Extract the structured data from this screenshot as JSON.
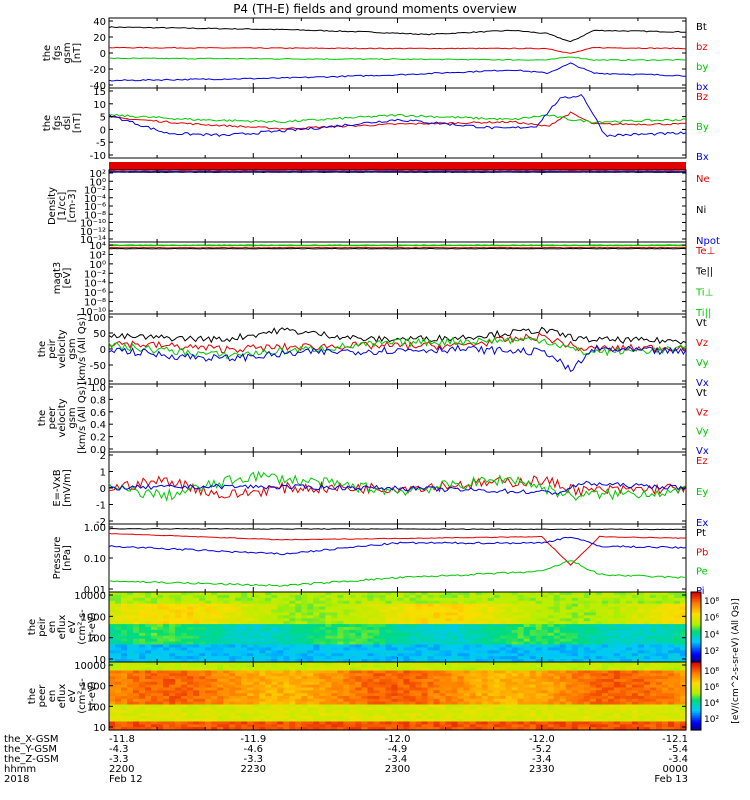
{
  "title": "P4 (TH-E) fields and ground moments overview",
  "colors": {
    "black": "#000000",
    "red": "#e00000",
    "green": "#00c800",
    "blue": "#0000e0"
  },
  "chart_data": [
    {
      "type": "line",
      "id": "fgs_gsm",
      "ylabel_lines": [
        "the",
        "fgs",
        "gsm",
        "[nT]"
      ],
      "yticks": [
        "40",
        "20",
        "0",
        "-20",
        "-40"
      ],
      "ylim": [
        -40,
        45
      ],
      "legend": [
        {
          "text": "Bt",
          "color": "black"
        },
        {
          "text": "bz",
          "color": "red"
        },
        {
          "text": "by",
          "color": "green"
        },
        {
          "text": "bx",
          "color": "blue"
        }
      ],
      "series": [
        {
          "name": "Bt",
          "color": "black",
          "noise": 0.6,
          "x": [
            0,
            0.3,
            0.45,
            0.55,
            0.7,
            0.76,
            0.8,
            0.84,
            1
          ],
          "y": [
            34,
            31,
            28,
            25,
            30,
            26,
            16,
            30,
            28
          ]
        },
        {
          "name": "bz",
          "color": "red",
          "noise": 0.5,
          "x": [
            0,
            0.5,
            0.76,
            0.8,
            0.84,
            1
          ],
          "y": [
            9,
            8,
            8,
            2,
            9,
            8
          ]
        },
        {
          "name": "by",
          "color": "green",
          "noise": 0.6,
          "x": [
            0,
            0.5,
            0.76,
            0.8,
            0.84,
            1
          ],
          "y": [
            -4,
            -5,
            -6,
            -2,
            -6,
            -6
          ]
        },
        {
          "name": "bx",
          "color": "blue",
          "noise": 0.8,
          "x": [
            0,
            0.3,
            0.5,
            0.7,
            0.76,
            0.8,
            0.84,
            1
          ],
          "y": [
            -31,
            -28,
            -24,
            -18,
            -22,
            -10,
            -22,
            -25
          ]
        }
      ]
    },
    {
      "type": "line",
      "id": "fgs_dsl",
      "ylabel_lines": [
        "the",
        "fgs",
        "dsl",
        "[nT]"
      ],
      "yticks": [
        "15",
        "10",
        "5",
        "0",
        "-5",
        "-10"
      ],
      "ylim": [
        -14,
        17
      ],
      "legend": [
        {
          "text": "Bz",
          "color": "red"
        },
        {
          "text": "By",
          "color": "green"
        },
        {
          "text": "Bx",
          "color": "blue"
        }
      ],
      "series": [
        {
          "name": "Bz",
          "color": "red",
          "noise": 0.4,
          "x": [
            0,
            0.15,
            0.3,
            0.5,
            0.7,
            0.76,
            0.8,
            0.84,
            1
          ],
          "y": [
            4,
            1,
            -1,
            1,
            2,
            0,
            6,
            1,
            1
          ]
        },
        {
          "name": "By",
          "color": "green",
          "noise": 0.5,
          "x": [
            0,
            0.15,
            0.3,
            0.5,
            0.7,
            0.76,
            0.8,
            0.84,
            1
          ],
          "y": [
            5,
            3,
            2,
            5,
            3,
            5,
            3,
            2,
            3
          ]
        },
        {
          "name": "Bx",
          "color": "blue",
          "noise": 0.6,
          "x": [
            0,
            0.1,
            0.2,
            0.35,
            0.5,
            0.68,
            0.74,
            0.78,
            0.82,
            0.86,
            1
          ],
          "y": [
            5,
            -3,
            -4,
            -1,
            3,
            -1,
            0,
            12,
            14,
            -4,
            -3
          ]
        }
      ]
    },
    {
      "type": "band",
      "id": "flag_bar",
      "color": "red"
    },
    {
      "type": "line",
      "id": "density",
      "log": true,
      "ylabel_lines": [
        "Density",
        "[1/cc]",
        "[cm-3]"
      ],
      "yticks": [
        "10²",
        "10⁰",
        "10⁻²",
        "10⁻⁴",
        "10⁻⁶",
        "10⁻⁸",
        "10⁻¹⁰",
        "10⁻¹²",
        "10⁻¹⁴"
      ],
      "ylim": [
        -14,
        2
      ],
      "legend": [
        {
          "text": "Ne",
          "color": "red"
        },
        {
          "text": "Ni",
          "color": "black"
        },
        {
          "text": "Npot",
          "color": "blue"
        }
      ],
      "series": [
        {
          "name": "Ne",
          "color": "red",
          "noise": 0.05,
          "x": [
            0,
            1
          ],
          "y": [
            1.7,
            1.7
          ]
        },
        {
          "name": "Ni",
          "color": "black",
          "noise": 0.05,
          "x": [
            0,
            1
          ],
          "y": [
            1.5,
            1.5
          ]
        },
        {
          "name": "Npot",
          "color": "blue",
          "noise": 0.05,
          "x": [
            0,
            1
          ],
          "y": [
            1.6,
            1.6
          ]
        }
      ]
    },
    {
      "type": "line",
      "id": "magt3",
      "log": true,
      "ylabel_lines": [
        "magt3",
        "[eV]"
      ],
      "yticks": [
        "10⁴",
        "10²",
        "10⁰",
        "10⁻²",
        "10⁻⁴",
        "10⁻⁶",
        "10⁻⁸",
        "10⁻¹⁰"
      ],
      "ylim": [
        -10,
        4
      ],
      "legend": [
        {
          "text": "Te⊥",
          "color": "red"
        },
        {
          "text": "Te||",
          "color": "black"
        },
        {
          "text": "Ti⊥",
          "color": "green"
        },
        {
          "text": "Ti||",
          "color": "green"
        }
      ],
      "series": [
        {
          "name": "Te⊥",
          "color": "red",
          "noise": 0.05,
          "x": [
            0,
            1
          ],
          "y": [
            2.9,
            2.9
          ]
        },
        {
          "name": "Te||",
          "color": "black",
          "noise": 0.05,
          "x": [
            0,
            1
          ],
          "y": [
            2.7,
            2.7
          ]
        },
        {
          "name": "Ti⊥",
          "color": "green",
          "noise": 0.05,
          "x": [
            0,
            1
          ],
          "y": [
            3.4,
            3.4
          ]
        },
        {
          "name": "Ti||",
          "color": "green",
          "noise": 0.05,
          "x": [
            0,
            1
          ],
          "y": [
            3.3,
            3.3
          ]
        }
      ]
    },
    {
      "type": "line",
      "id": "peir_velocity",
      "ylabel_lines": [
        "the",
        "peir",
        "velocity",
        "gsm",
        "[km/s (All Qs)]"
      ],
      "yticks": [
        "100",
        "50",
        "0",
        "-50",
        "-100"
      ],
      "ylim": [
        -110,
        110
      ],
      "legend": [
        {
          "text": "Vt",
          "color": "black"
        },
        {
          "text": "Vz",
          "color": "red"
        },
        {
          "text": "Vy",
          "color": "green"
        },
        {
          "text": "Vx",
          "color": "blue"
        }
      ],
      "series": [
        {
          "name": "Vt",
          "color": "black",
          "noise": 10,
          "x": [
            0,
            0.2,
            0.3,
            0.45,
            0.6,
            0.75,
            0.82,
            1
          ],
          "y": [
            40,
            30,
            60,
            30,
            35,
            60,
            30,
            25
          ]
        },
        {
          "name": "Vz",
          "color": "red",
          "noise": 12,
          "x": [
            0,
            0.2,
            0.4,
            0.6,
            0.75,
            0.82,
            1
          ],
          "y": [
            20,
            0,
            10,
            10,
            40,
            0,
            5
          ]
        },
        {
          "name": "Vy",
          "color": "green",
          "noise": 12,
          "x": [
            0,
            0.2,
            0.35,
            0.5,
            0.75,
            0.82,
            1
          ],
          "y": [
            10,
            -20,
            0,
            20,
            30,
            -10,
            0
          ]
        },
        {
          "name": "Vx",
          "color": "blue",
          "noise": 12,
          "x": [
            0,
            0.1,
            0.2,
            0.35,
            0.6,
            0.76,
            0.8,
            0.84,
            1
          ],
          "y": [
            0,
            -20,
            -30,
            -10,
            0,
            -10,
            -70,
            0,
            -10
          ]
        }
      ]
    },
    {
      "type": "line",
      "id": "peer_velocity",
      "ylabel_lines": [
        "the",
        "peer",
        "velocity",
        "gsm",
        "[km/s (All Qs)]"
      ],
      "yticks": [
        "1.0",
        "0.8",
        "0.6",
        "0.4",
        "0.2",
        "0.0"
      ],
      "ylim": [
        0,
        1.05
      ],
      "legend": [
        {
          "text": "Vt",
          "color": "black"
        },
        {
          "text": "Vz",
          "color": "red"
        },
        {
          "text": "Vy",
          "color": "green"
        },
        {
          "text": "Vx",
          "color": "blue"
        }
      ],
      "series": []
    },
    {
      "type": "line",
      "id": "efield",
      "ylabel_lines": [
        "E=-VxB",
        "[mV/m]"
      ],
      "yticks": [
        "2",
        "1",
        "0",
        "-1",
        "-2"
      ],
      "ylim": [
        -2.3,
        2.3
      ],
      "legend": [
        {
          "text": "Ez",
          "color": "red"
        },
        {
          "text": "Ey",
          "color": "green"
        },
        {
          "text": "Ex",
          "color": "blue"
        }
      ],
      "series": [
        {
          "name": "Ez",
          "color": "red",
          "noise": 0.35,
          "x": [
            0,
            0.1,
            0.2,
            0.3,
            0.5,
            0.75,
            0.82,
            1
          ],
          "y": [
            0,
            0.5,
            -0.5,
            0,
            0,
            0.5,
            -0.2,
            0
          ]
        },
        {
          "name": "Ey",
          "color": "green",
          "noise": 0.35,
          "x": [
            0,
            0.1,
            0.25,
            0.5,
            0.7,
            0.8,
            1
          ],
          "y": [
            0,
            -0.5,
            0.8,
            -0.2,
            0.6,
            -0.5,
            -0.2
          ]
        },
        {
          "name": "Ex",
          "color": "blue",
          "noise": 0.15,
          "x": [
            0,
            0.2,
            0.5,
            0.78,
            0.82,
            1
          ],
          "y": [
            0,
            0.1,
            0,
            -0.3,
            0.3,
            0
          ]
        }
      ]
    },
    {
      "type": "line",
      "id": "pressure",
      "log": true,
      "ylabel_lines": [
        "Pressure",
        "[nPa]"
      ],
      "yticks": [
        "1.00",
        "0.10",
        "0.01"
      ],
      "ylim": [
        -2.05,
        0.1
      ],
      "legend": [
        {
          "text": "Pt",
          "color": "black"
        },
        {
          "text": "Pb",
          "color": "red"
        },
        {
          "text": "Pe",
          "color": "green"
        },
        {
          "text": "Pi",
          "color": "blue"
        }
      ],
      "series": [
        {
          "name": "Pt",
          "color": "black",
          "noise": 0.01,
          "x": [
            0,
            1
          ],
          "y": [
            -0.05,
            -0.07
          ]
        },
        {
          "name": "Pb",
          "color": "red",
          "noise": 0.01,
          "x": [
            0,
            0.3,
            0.75,
            0.8,
            0.85,
            1
          ],
          "y": [
            -0.2,
            -0.4,
            -0.3,
            -1.2,
            -0.3,
            -0.35
          ]
        },
        {
          "name": "Pe",
          "color": "green",
          "noise": 0.03,
          "x": [
            0,
            0.3,
            0.5,
            0.75,
            0.8,
            0.85,
            1
          ],
          "y": [
            -1.7,
            -1.85,
            -1.6,
            -1.4,
            -1.05,
            -1.5,
            -1.6
          ]
        },
        {
          "name": "Pi",
          "color": "blue",
          "noise": 0.03,
          "x": [
            0,
            0.3,
            0.5,
            0.75,
            0.8,
            0.85,
            1
          ],
          "y": [
            -0.6,
            -0.85,
            -0.5,
            -0.5,
            -0.3,
            -0.6,
            -0.65
          ]
        }
      ]
    },
    {
      "type": "heatmap",
      "id": "peir_eflux",
      "ylabel_lines": [
        "the",
        "peir",
        "en",
        "eflux",
        "eV",
        "(cm²-s-",
        "sr-eV)"
      ],
      "yticks": [
        "10000",
        "1000",
        "100",
        "10"
      ],
      "ylim": [
        0.8,
        4.3
      ]
    },
    {
      "type": "heatmap",
      "id": "peer_eflux",
      "ylabel_lines": [
        "the",
        "peer",
        "en",
        "eflux",
        "eV",
        "(cm²-s-",
        "sr-eV)"
      ],
      "yticks": [
        "10000",
        "1000",
        "100",
        "10"
      ],
      "ylim": [
        0.8,
        4.3
      ]
    }
  ],
  "colorbars": [
    {
      "ticks": [
        "10⁸",
        "10⁶",
        "10⁴",
        "10²"
      ],
      "label": "[eV/(cm^2-s-sr-eV) (All Qs)]"
    },
    {
      "ticks": [
        "10⁸",
        "10⁶",
        "10⁴",
        "10²"
      ],
      "label": "[eV/(cm^2-s-sr-eV)]"
    }
  ],
  "xaxis": {
    "row_labels": [
      "the_X-GSM",
      "the_Y-GSM",
      "the_Z-GSM",
      "hhmm",
      "2018"
    ],
    "columns": [
      {
        "x": 0.0,
        "vals": [
          "-11.8",
          "-4.3",
          "-3.3",
          "2200",
          "Feb 12"
        ]
      },
      {
        "x": 0.25,
        "vals": [
          "-11.9",
          "-4.6",
          "-3.3",
          "2230",
          ""
        ]
      },
      {
        "x": 0.5,
        "vals": [
          "-12.0",
          "-4.9",
          "-3.4",
          "2300",
          ""
        ]
      },
      {
        "x": 0.75,
        "vals": [
          "-12.0",
          "-5.2",
          "-3.4",
          "2330",
          ""
        ]
      },
      {
        "x": 1.0,
        "vals": [
          "-12.1",
          "-5.4",
          "-3.4",
          "0000",
          "Feb 13"
        ]
      }
    ]
  }
}
